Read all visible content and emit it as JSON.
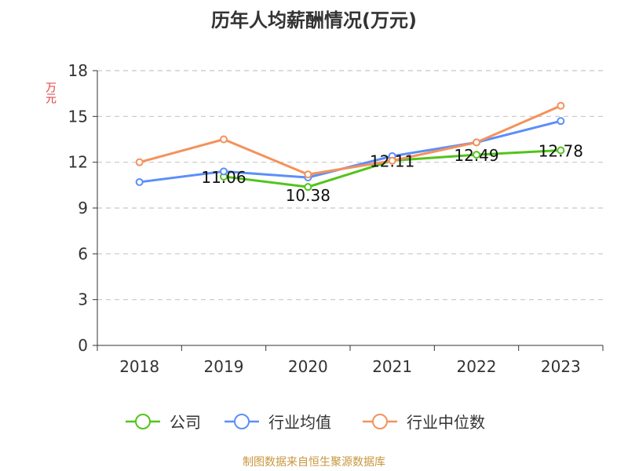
{
  "chart_data": {
    "type": "line",
    "title": "历年人均薪酬情况(万元)",
    "ylabel": "万元",
    "xlabel": "",
    "categories": [
      "2018",
      "2019",
      "2020",
      "2021",
      "2022",
      "2023"
    ],
    "ylim": [
      0,
      18
    ],
    "yticks": [
      0,
      3,
      6,
      9,
      12,
      15,
      18
    ],
    "grid": true,
    "legend_position": "bottom",
    "series": [
      {
        "name": "公司",
        "color": "#52c41a",
        "values": [
          null,
          11.06,
          10.38,
          12.11,
          12.49,
          12.78
        ],
        "labels": [
          "",
          "11.06",
          "10.38",
          "12.11",
          "12.49",
          "12.78"
        ]
      },
      {
        "name": "行业均值",
        "color": "#5b8ff9",
        "values": [
          10.7,
          11.4,
          11.0,
          12.4,
          13.3,
          14.7
        ]
      },
      {
        "name": "行业中位数",
        "color": "#f4925b",
        "values": [
          12.0,
          13.5,
          11.2,
          12.1,
          13.3,
          15.7
        ]
      }
    ]
  },
  "source": "制图数据来自恒生聚源数据库"
}
